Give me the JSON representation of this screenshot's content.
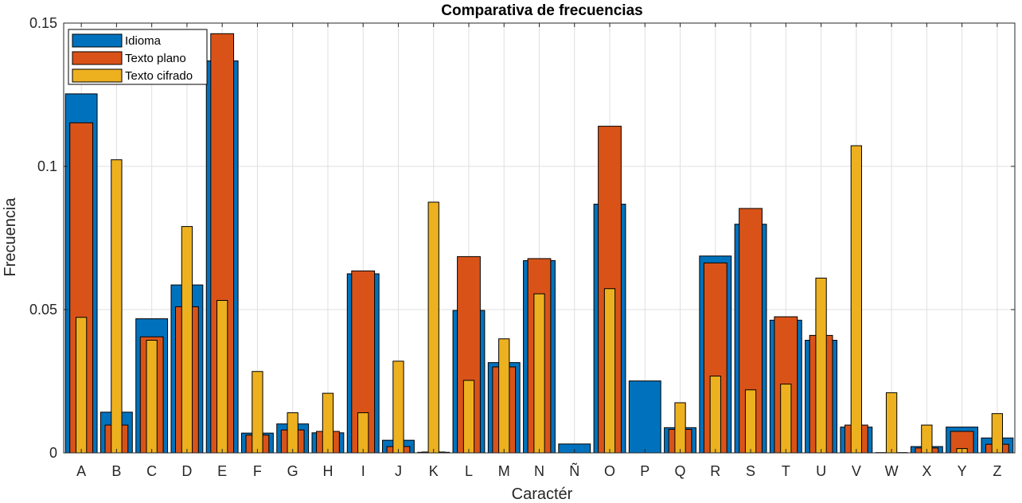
{
  "chart_data": {
    "type": "bar",
    "title": "Comparativa de frecuencias",
    "xlabel": "Caractér",
    "ylabel": "Frecuencia",
    "ylim": [
      0,
      0.15
    ],
    "yticks": [
      0,
      0.05,
      0.1,
      0.15
    ],
    "ytick_labels": [
      "0",
      "0.05",
      "0.1",
      "0.15"
    ],
    "grid": true,
    "legend_position": "top-left",
    "categories": [
      "A",
      "B",
      "C",
      "D",
      "E",
      "F",
      "G",
      "H",
      "I",
      "J",
      "K",
      "L",
      "M",
      "N",
      "Ñ",
      "O",
      "P",
      "Q",
      "R",
      "S",
      "T",
      "U",
      "V",
      "W",
      "X",
      "Y",
      "Z"
    ],
    "series": [
      {
        "name": "Idioma",
        "color": "#0072BD",
        "values": [
          0.1253,
          0.0142,
          0.0468,
          0.0586,
          0.1368,
          0.0069,
          0.0101,
          0.007,
          0.0625,
          0.0044,
          0.0002,
          0.0497,
          0.0315,
          0.0671,
          0.0031,
          0.0868,
          0.0251,
          0.0088,
          0.0687,
          0.0798,
          0.0463,
          0.0393,
          0.009,
          0.0001,
          0.0022,
          0.009,
          0.0052
        ]
      },
      {
        "name": "Texto plano",
        "color": "#D95319",
        "values": [
          0.1152,
          0.0097,
          0.0405,
          0.051,
          0.1463,
          0.0062,
          0.008,
          0.0075,
          0.0635,
          0.0022,
          0.0003,
          0.0685,
          0.03,
          0.0678,
          0.0,
          0.114,
          0.0,
          0.0082,
          0.0663,
          0.0853,
          0.0475,
          0.041,
          0.0097,
          0.0,
          0.0017,
          0.0075,
          0.003
        ]
      },
      {
        "name": "Texto cifrado",
        "color": "#EDB120",
        "values": [
          0.0473,
          0.1023,
          0.0393,
          0.079,
          0.0532,
          0.0284,
          0.014,
          0.0208,
          0.014,
          0.032,
          0.0875,
          0.0253,
          0.0398,
          0.0555,
          0.0,
          0.0573,
          0.0,
          0.0175,
          0.0268,
          0.022,
          0.024,
          0.061,
          0.1072,
          0.021,
          0.0097,
          0.0015,
          0.0137
        ]
      }
    ]
  }
}
